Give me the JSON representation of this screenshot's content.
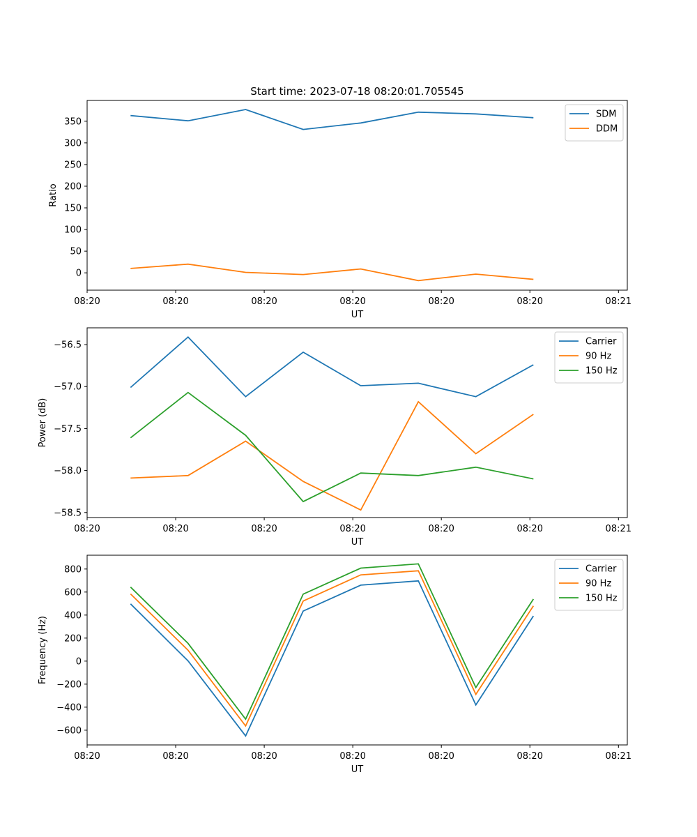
{
  "colors": {
    "blue": "#1f77b4",
    "orange": "#ff7f0e",
    "green": "#2ca02c"
  },
  "chart_data": [
    {
      "type": "line",
      "title": "Start time: 2023-07-18 08:20:01.705545",
      "xlabel": "UT",
      "ylabel": "Ratio",
      "xlim": [
        0,
        6.1
      ],
      "ylim": [
        -40,
        398
      ],
      "x_ticks": [
        {
          "v": 0,
          "label": "08:20"
        },
        {
          "v": 1,
          "label": "08:20"
        },
        {
          "v": 2,
          "label": "08:20"
        },
        {
          "v": 3,
          "label": "08:20"
        },
        {
          "v": 4,
          "label": "08:20"
        },
        {
          "v": 5,
          "label": "08:20"
        },
        {
          "v": 6,
          "label": "08:21"
        }
      ],
      "y_ticks": [
        {
          "v": 0,
          "label": "0"
        },
        {
          "v": 50,
          "label": "50"
        },
        {
          "v": 100,
          "label": "100"
        },
        {
          "v": 150,
          "label": "150"
        },
        {
          "v": 200,
          "label": "200"
        },
        {
          "v": 250,
          "label": "250"
        },
        {
          "v": 300,
          "label": "300"
        },
        {
          "v": 350,
          "label": "350"
        }
      ],
      "x": [
        0.49,
        1.14,
        1.79,
        2.44,
        3.09,
        3.74,
        4.39,
        5.04
      ],
      "legend_position": "top-right",
      "series": [
        {
          "name": "SDM",
          "color": "#1f77b4",
          "values": [
            363,
            351,
            377,
            331,
            346,
            371,
            367,
            358
          ]
        },
        {
          "name": "DDM",
          "color": "#ff7f0e",
          "values": [
            10,
            20,
            1,
            -4,
            9,
            -18,
            -3,
            -15
          ]
        }
      ]
    },
    {
      "type": "line",
      "title": "",
      "xlabel": "UT",
      "ylabel": "Power (dB)",
      "xlim": [
        0,
        6.1
      ],
      "ylim": [
        -58.56,
        -56.3
      ],
      "x_ticks": [
        {
          "v": 0,
          "label": "08:20"
        },
        {
          "v": 1,
          "label": "08:20"
        },
        {
          "v": 2,
          "label": "08:20"
        },
        {
          "v": 3,
          "label": "08:20"
        },
        {
          "v": 4,
          "label": "08:20"
        },
        {
          "v": 5,
          "label": "08:20"
        },
        {
          "v": 6,
          "label": "08:21"
        }
      ],
      "y_ticks": [
        {
          "v": -58.5,
          "label": "−58.5"
        },
        {
          "v": -58.0,
          "label": "−58.0"
        },
        {
          "v": -57.5,
          "label": "−57.5"
        },
        {
          "v": -57.0,
          "label": "−57.0"
        },
        {
          "v": -56.5,
          "label": "−56.5"
        }
      ],
      "x": [
        0.49,
        1.14,
        1.79,
        2.44,
        3.09,
        3.74,
        4.39,
        5.04
      ],
      "legend_position": "top-right",
      "series": [
        {
          "name": "Carrier",
          "color": "#1f77b4",
          "values": [
            -57.01,
            -56.41,
            -57.12,
            -56.59,
            -56.99,
            -56.96,
            -57.12,
            -56.74
          ]
        },
        {
          "name": "90 Hz",
          "color": "#ff7f0e",
          "values": [
            -58.09,
            -58.06,
            -57.65,
            -58.13,
            -58.47,
            -57.18,
            -57.8,
            -57.33
          ]
        },
        {
          "name": "150 Hz",
          "color": "#2ca02c",
          "values": [
            -57.61,
            -57.07,
            -57.58,
            -58.37,
            -58.03,
            -58.06,
            -57.96,
            -58.1
          ]
        }
      ]
    },
    {
      "type": "line",
      "title": "",
      "xlabel": "UT",
      "ylabel": "Frequency (Hz)",
      "xlim": [
        0,
        6.1
      ],
      "ylim": [
        -728,
        920
      ],
      "x_ticks": [
        {
          "v": 0,
          "label": "08:20"
        },
        {
          "v": 1,
          "label": "08:20"
        },
        {
          "v": 2,
          "label": "08:20"
        },
        {
          "v": 3,
          "label": "08:20"
        },
        {
          "v": 4,
          "label": "08:20"
        },
        {
          "v": 5,
          "label": "08:20"
        },
        {
          "v": 6,
          "label": "08:21"
        }
      ],
      "y_ticks": [
        {
          "v": -600,
          "label": "−600"
        },
        {
          "v": -400,
          "label": "−400"
        },
        {
          "v": -200,
          "label": "−200"
        },
        {
          "v": 0,
          "label": "0"
        },
        {
          "v": 200,
          "label": "200"
        },
        {
          "v": 400,
          "label": "400"
        },
        {
          "v": 600,
          "label": "600"
        },
        {
          "v": 800,
          "label": "800"
        }
      ],
      "x": [
        0.49,
        1.14,
        1.79,
        2.44,
        3.09,
        3.74,
        4.39,
        5.04
      ],
      "legend_position": "top-right",
      "series": [
        {
          "name": "Carrier",
          "color": "#1f77b4",
          "values": [
            497,
            2,
            -650,
            435,
            660,
            697,
            -380,
            392
          ]
        },
        {
          "name": "90 Hz",
          "color": "#ff7f0e",
          "values": [
            584,
            95,
            -563,
            522,
            749,
            785,
            -289,
            480
          ]
        },
        {
          "name": "150 Hz",
          "color": "#2ca02c",
          "values": [
            643,
            154,
            -504,
            582,
            808,
            845,
            -229,
            539
          ]
        }
      ]
    }
  ]
}
